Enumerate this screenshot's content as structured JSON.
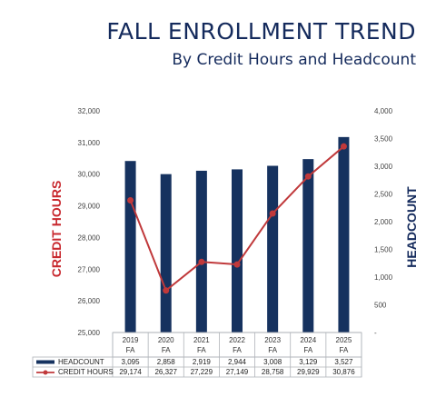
{
  "header": {
    "title": "FALL ENROLLMENT TREND",
    "subtitle": "By Credit Hours and Headcount"
  },
  "colors": {
    "headcount_bar": "#16325f",
    "credit_hours_line": "#c0393b",
    "title": "#142a5c",
    "left_axis_title": "#c8282e"
  },
  "chart_data": {
    "type": "bar",
    "title": "FALL ENROLLMENT TREND",
    "subtitle": "By Credit Hours and Headcount",
    "categories": [
      "2019 FA",
      "2020 FA",
      "2021 FA",
      "2022 FA",
      "2023 FA",
      "2024 FA",
      "2025 FA"
    ],
    "category_lines": [
      [
        "2019",
        "FA"
      ],
      [
        "2020",
        "FA"
      ],
      [
        "2021",
        "FA"
      ],
      [
        "2022",
        "FA"
      ],
      [
        "2023",
        "FA"
      ],
      [
        "2024",
        "FA"
      ],
      [
        "2025",
        "FA"
      ]
    ],
    "series": [
      {
        "name": "HEADCOUNT",
        "type": "bar",
        "axis": "right",
        "values": [
          3095,
          2858,
          2919,
          2944,
          3008,
          3129,
          3527
        ],
        "labels": [
          "3,095",
          "2,858",
          "2,919",
          "2,944",
          "3,008",
          "3,129",
          "3,527"
        ]
      },
      {
        "name": "CREDIT HOURS",
        "type": "line",
        "axis": "left",
        "values": [
          29174,
          26327,
          27229,
          27149,
          28758,
          29929,
          30876
        ],
        "labels": [
          "29,174",
          "26,327",
          "27,229",
          "27,149",
          "28,758",
          "29,929",
          "30,876"
        ]
      }
    ],
    "y_left": {
      "label": "CREDIT HOURS",
      "min": 25000,
      "max": 32000,
      "ticks": [
        25000,
        26000,
        27000,
        28000,
        29000,
        30000,
        31000,
        32000
      ],
      "tick_labels": [
        "25,000",
        "26,000",
        "27,000",
        "28,000",
        "29,000",
        "30,000",
        "31,000",
        "32,000"
      ]
    },
    "y_right": {
      "label": "HEADCOUNT",
      "min": 0,
      "max": 4000,
      "ticks": [
        0,
        500,
        1000,
        1500,
        2000,
        2500,
        3000,
        3500,
        4000
      ],
      "tick_labels": [
        "-",
        "500",
        "1,000",
        "1,500",
        "2,000",
        "2,500",
        "3,000",
        "3,500",
        "4,000"
      ]
    },
    "grid": false,
    "legend": "data-table-below"
  }
}
